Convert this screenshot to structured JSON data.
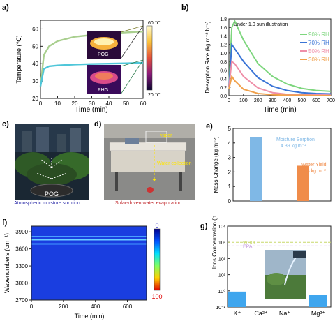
{
  "panels": {
    "a": {
      "label": "a)",
      "ylabel": "Temperature (℃)",
      "xlabel": "Time (min)",
      "colorbar_top": "60 ℃",
      "colorbar_bottom": "20 ℃",
      "inset_top": "POG",
      "inset_bottom": "PHG",
      "colors": {
        "pog": "#a9cf8f",
        "phg": "#4fc6d9"
      }
    },
    "b": {
      "label": "b)",
      "ylabel": "Desorption Rate (kg m⁻² h⁻¹)",
      "xlabel": "Time (min)",
      "annotation": "Under 1.0 sun illustration",
      "legend": [
        "90% RH",
        "70% RH",
        "50% RH",
        "30% RH"
      ],
      "colors": [
        "#7ed67e",
        "#3a74d6",
        "#ef8fa8",
        "#f0a04a"
      ]
    },
    "c": {
      "label": "c)",
      "photo_label": "POG",
      "caption": "Atmospheric moisture sorption"
    },
    "d": {
      "label": "d)",
      "vapor": "vapor",
      "collection": "Water collection",
      "caption": "Solar-driven water evaporation"
    },
    "e": {
      "label": "e)",
      "ylabel": "Mass Change (kg m⁻²)",
      "bar1_title": "Moisture Sorption",
      "bar1_value": "4.39 kg m⁻²",
      "bar2_title": "Water Yield",
      "bar2_value": "2.43 kg m⁻²",
      "colors": [
        "#7fb8e6",
        "#f08c4a"
      ]
    },
    "f": {
      "label": "f)",
      "ylabel": "Wavenumbers (cm⁻¹)",
      "xlabel": "Time (min)",
      "cb_top": "0",
      "cb_bottom": "100"
    },
    "g": {
      "label": "g)",
      "ylabel": "Ions Concentration (mg/L)",
      "who": "WHO",
      "epa": "EPA"
    }
  },
  "chart_data": [
    {
      "type": "line",
      "panel": "a",
      "xlabel": "Time (min)",
      "ylabel": "Temperature (℃)",
      "xlim": [
        0,
        60
      ],
      "ylim": [
        20,
        65
      ],
      "xticks": [
        0,
        10,
        20,
        30,
        40,
        50,
        60
      ],
      "yticks": [
        20,
        30,
        40,
        50,
        60
      ],
      "series": [
        {
          "name": "POG",
          "x": [
            0,
            2,
            5,
            10,
            20,
            30,
            40,
            50,
            60
          ],
          "y": [
            27,
            45,
            50,
            53,
            55.5,
            56.5,
            57.5,
            58,
            58.5
          ]
        },
        {
          "name": "PHG",
          "x": [
            0,
            2,
            5,
            10,
            20,
            30,
            40,
            50,
            60
          ],
          "y": [
            27,
            37,
            38.5,
            39,
            39.5,
            39.8,
            40,
            40.2,
            40.5
          ]
        }
      ]
    },
    {
      "type": "line",
      "panel": "b",
      "xlabel": "Time (min)",
      "ylabel": "Desorption Rate (kg m⁻² h⁻¹)",
      "xlim": [
        0,
        700
      ],
      "ylim": [
        0,
        1.8
      ],
      "xticks": [
        0,
        100,
        200,
        300,
        400,
        500,
        600,
        700
      ],
      "yticks": [
        0.0,
        0.2,
        0.4,
        0.6,
        0.8,
        1.0,
        1.2,
        1.4,
        1.6,
        1.8
      ],
      "series": [
        {
          "name": "90% RH",
          "x": [
            0,
            20,
            40,
            100,
            200,
            300,
            400,
            500,
            600,
            700
          ],
          "y": [
            0.2,
            1.6,
            1.75,
            1.3,
            0.75,
            0.45,
            0.27,
            0.17,
            0.12,
            0.1
          ]
        },
        {
          "name": "70% RH",
          "x": [
            0,
            20,
            40,
            100,
            200,
            300,
            400,
            500,
            600,
            700
          ],
          "y": [
            0.2,
            1.2,
            1.1,
            0.8,
            0.42,
            0.22,
            0.12,
            0.07,
            0.05,
            0.04
          ]
        },
        {
          "name": "50% RH",
          "x": [
            0,
            20,
            40,
            100,
            200,
            300,
            400,
            500,
            600,
            700
          ],
          "y": [
            0.2,
            0.8,
            0.75,
            0.45,
            0.18,
            0.07,
            0.03,
            0.02,
            0.02,
            0.01
          ]
        },
        {
          "name": "30% RH",
          "x": [
            0,
            20,
            40,
            100,
            200,
            300,
            400,
            500,
            600,
            700
          ],
          "y": [
            0.15,
            0.45,
            0.35,
            0.15,
            0.05,
            0.02,
            0.01,
            0.01,
            0.0,
            0.0
          ]
        }
      ]
    },
    {
      "type": "bar",
      "panel": "e",
      "ylabel": "Mass Change (kg m⁻²)",
      "categories": [
        "Moisture Sorption",
        "Water Yield"
      ],
      "values": [
        4.39,
        2.43
      ],
      "ylim": [
        0,
        5
      ],
      "yticks": [
        0,
        1,
        2,
        3,
        4,
        5
      ]
    },
    {
      "type": "heatmap",
      "panel": "f",
      "xlabel": "Time (min)",
      "ylabel": "Wavenumbers (cm⁻¹)",
      "xlim": [
        0,
        720
      ],
      "ylim": [
        2700,
        4000
      ],
      "xticks": [
        0,
        200,
        400,
        600
      ],
      "yticks": [
        2700,
        3000,
        3300,
        3600,
        3900
      ],
      "colorbar": [
        0,
        100
      ]
    },
    {
      "type": "bar",
      "panel": "g",
      "ylabel": "Ions Concentration (mg/L)",
      "yscale": "log",
      "ylim": [
        0.1,
        10000
      ],
      "yticks": [
        0.1,
        1,
        10,
        100,
        1000,
        10000
      ],
      "categories": [
        "K⁺",
        "Ca²⁺",
        "Na⁺",
        "Mg²⁺"
      ],
      "values": [
        0.9,
        0.1,
        0.1,
        0.55
      ],
      "reference_lines": [
        {
          "name": "WHO",
          "value": 1000
        },
        {
          "name": "EPA",
          "value": 600
        }
      ]
    }
  ]
}
